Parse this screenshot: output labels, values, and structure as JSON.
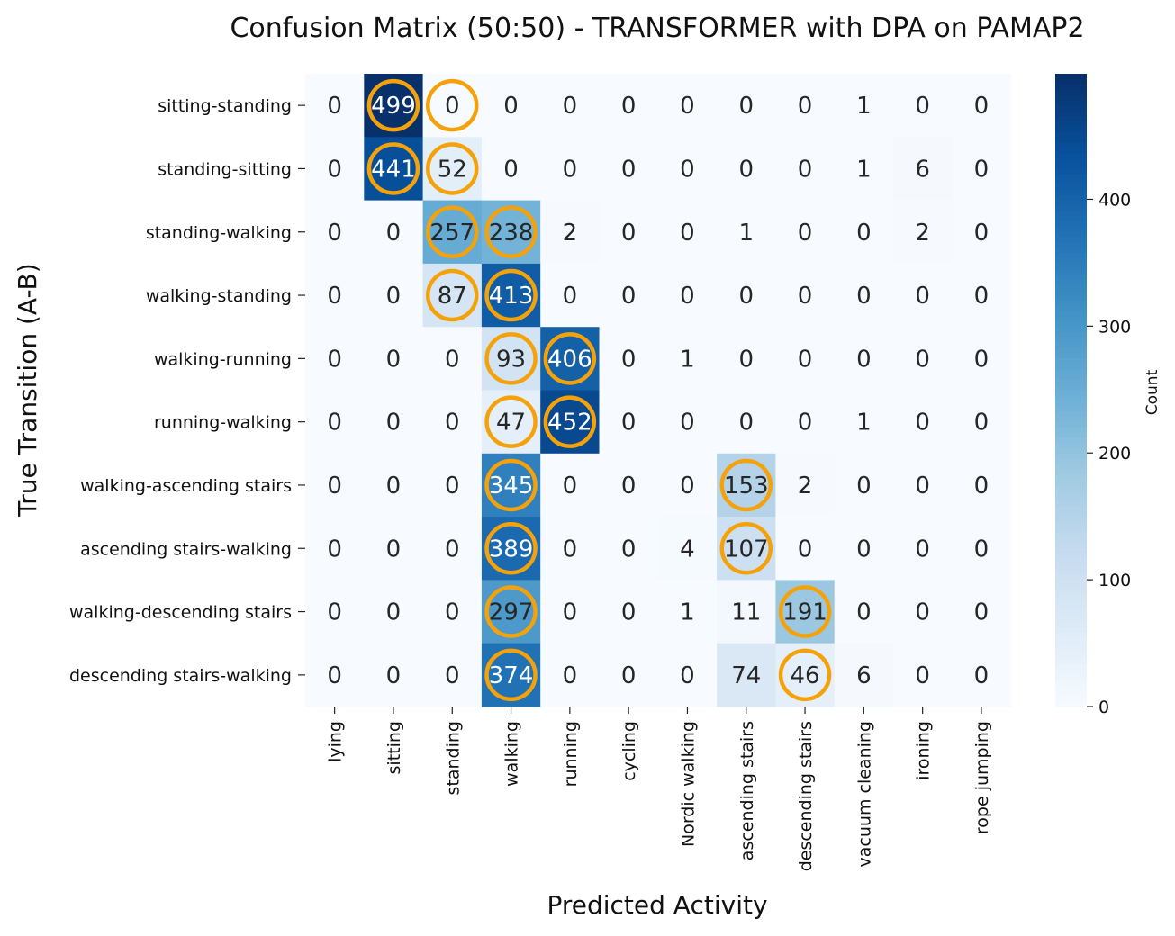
{
  "chart_data": {
    "type": "heatmap",
    "title": "Confusion Matrix (50:50) - TRANSFORMER with DPA on PAMAP2",
    "xlabel": "Predicted Activity",
    "ylabel": "True Transition (A-B)",
    "colorbar_label": "Count",
    "colorbar_ticks": [
      0,
      100,
      200,
      300,
      400
    ],
    "colorbar_range": [
      0,
      499
    ],
    "colormap": "Blues",
    "highlight_color": "#f5a20a",
    "x_categories": [
      "lying",
      "sitting",
      "standing",
      "walking",
      "running",
      "cycling",
      "Nordic walking",
      "ascending stairs",
      "descending stairs",
      "vacuum cleaning",
      "ironing",
      "rope jumping"
    ],
    "y_categories": [
      "sitting-standing",
      "standing-sitting",
      "standing-walking",
      "walking-standing",
      "walking-running",
      "running-walking",
      "walking-ascending stairs",
      "ascending stairs-walking",
      "walking-descending stairs",
      "descending stairs-walking"
    ],
    "values": [
      [
        0,
        499,
        0,
        0,
        0,
        0,
        0,
        0,
        0,
        1,
        0,
        0
      ],
      [
        0,
        441,
        52,
        0,
        0,
        0,
        0,
        0,
        0,
        1,
        6,
        0
      ],
      [
        0,
        0,
        257,
        238,
        2,
        0,
        0,
        1,
        0,
        0,
        2,
        0
      ],
      [
        0,
        0,
        87,
        413,
        0,
        0,
        0,
        0,
        0,
        0,
        0,
        0
      ],
      [
        0,
        0,
        0,
        93,
        406,
        0,
        1,
        0,
        0,
        0,
        0,
        0
      ],
      [
        0,
        0,
        0,
        47,
        452,
        0,
        0,
        0,
        0,
        1,
        0,
        0
      ],
      [
        0,
        0,
        0,
        345,
        0,
        0,
        0,
        153,
        2,
        0,
        0,
        0
      ],
      [
        0,
        0,
        0,
        389,
        0,
        0,
        4,
        107,
        0,
        0,
        0,
        0
      ],
      [
        0,
        0,
        0,
        297,
        0,
        0,
        1,
        11,
        191,
        0,
        0,
        0
      ],
      [
        0,
        0,
        0,
        374,
        0,
        0,
        0,
        74,
        46,
        6,
        0,
        0
      ]
    ],
    "highlighted_cells": [
      [
        0,
        1
      ],
      [
        0,
        2
      ],
      [
        1,
        1
      ],
      [
        1,
        2
      ],
      [
        2,
        2
      ],
      [
        2,
        3
      ],
      [
        3,
        2
      ],
      [
        3,
        3
      ],
      [
        4,
        3
      ],
      [
        4,
        4
      ],
      [
        5,
        3
      ],
      [
        5,
        4
      ],
      [
        6,
        3
      ],
      [
        6,
        7
      ],
      [
        7,
        3
      ],
      [
        7,
        7
      ],
      [
        8,
        3
      ],
      [
        8,
        8
      ],
      [
        9,
        3
      ],
      [
        9,
        8
      ]
    ]
  }
}
